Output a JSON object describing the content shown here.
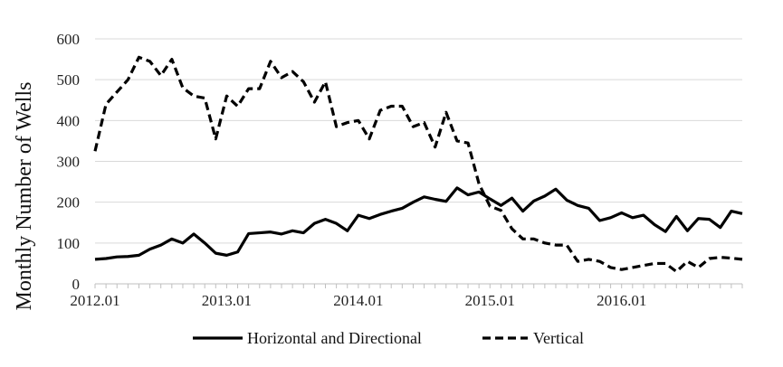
{
  "chart_data": {
    "type": "line",
    "title": "",
    "xlabel": "",
    "ylabel": "Monthly Number of Wells",
    "ylim": [
      0,
      600
    ],
    "yticks": [
      0,
      100,
      200,
      300,
      400,
      500,
      600
    ],
    "xticks": [
      "2012.01",
      "2013.01",
      "2014.01",
      "2015.01",
      "2016.01"
    ],
    "grid": true,
    "legend": "bottom",
    "x": [
      "2012.01",
      "2012.02",
      "2012.03",
      "2012.04",
      "2012.05",
      "2012.06",
      "2012.07",
      "2012.08",
      "2012.09",
      "2012.10",
      "2012.11",
      "2012.12",
      "2013.01",
      "2013.02",
      "2013.03",
      "2013.04",
      "2013.05",
      "2013.06",
      "2013.07",
      "2013.08",
      "2013.09",
      "2013.10",
      "2013.11",
      "2013.12",
      "2014.01",
      "2014.02",
      "2014.03",
      "2014.04",
      "2014.05",
      "2014.06",
      "2014.07",
      "2014.08",
      "2014.09",
      "2014.10",
      "2014.11",
      "2014.12",
      "2015.01",
      "2015.02",
      "2015.03",
      "2015.04",
      "2015.05",
      "2015.06",
      "2015.07",
      "2015.08",
      "2015.09",
      "2015.10",
      "2015.11",
      "2015.12",
      "2016.01",
      "2016.02",
      "2016.03",
      "2016.04",
      "2016.05",
      "2016.06",
      "2016.07",
      "2016.08",
      "2016.09",
      "2016.10",
      "2016.11",
      "2016.12"
    ],
    "series": [
      {
        "name": "Horizontal and Directional",
        "color": "#000000",
        "dash": "solid",
        "values": [
          60,
          62,
          66,
          67,
          70,
          85,
          95,
          110,
          100,
          122,
          100,
          75,
          70,
          78,
          123,
          125,
          127,
          122,
          130,
          125,
          148,
          158,
          148,
          130,
          168,
          160,
          170,
          178,
          185,
          200,
          213,
          207,
          202,
          235,
          218,
          225,
          208,
          192,
          210,
          178,
          203,
          215,
          232,
          205,
          192,
          185,
          155,
          162,
          174,
          162,
          168,
          145,
          128,
          165,
          130,
          160,
          158,
          138,
          178,
          172
        ]
      },
      {
        "name": "Vertical",
        "color": "#000000",
        "dash": "dashed",
        "values": [
          325,
          440,
          470,
          500,
          555,
          545,
          510,
          550,
          480,
          460,
          455,
          355,
          460,
          435,
          478,
          478,
          545,
          505,
          520,
          495,
          445,
          495,
          385,
          395,
          400,
          355,
          425,
          435,
          435,
          385,
          395,
          335,
          420,
          350,
          345,
          245,
          190,
          180,
          135,
          110,
          110,
          100,
          95,
          95,
          55,
          60,
          55,
          40,
          35,
          40,
          45,
          50,
          50,
          30,
          55,
          40,
          62,
          65,
          63,
          60
        ]
      }
    ]
  }
}
